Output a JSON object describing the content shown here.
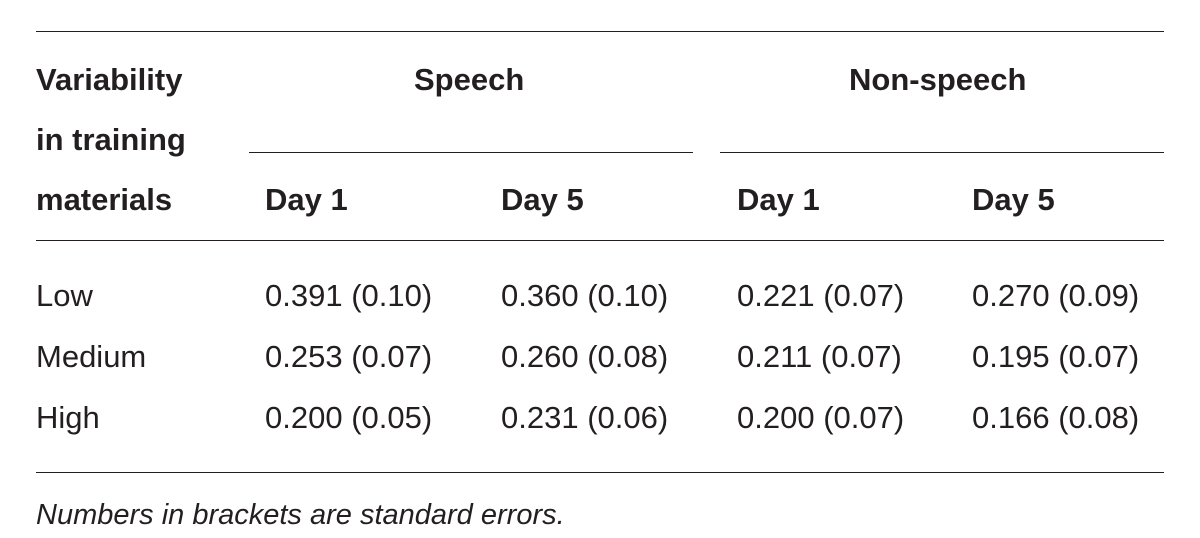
{
  "table": {
    "row_header_lines": [
      "Variability",
      "in training",
      "materials"
    ],
    "groups": [
      "Speech",
      "Non-speech"
    ],
    "subheaders": [
      "Day 1",
      "Day 5",
      "Day 1",
      "Day 5"
    ],
    "rows": [
      {
        "label": "Low",
        "values": [
          "0.391 (0.10)",
          "0.360 (0.10)",
          "0.221 (0.07)",
          "0.270 (0.09)"
        ]
      },
      {
        "label": "Medium",
        "values": [
          "0.253 (0.07)",
          "0.260 (0.08)",
          "0.211 (0.07)",
          "0.195 (0.07)"
        ]
      },
      {
        "label": "High",
        "values": [
          "0.200 (0.05)",
          "0.231 (0.06)",
          "0.200 (0.07)",
          "0.166 (0.08)"
        ]
      }
    ],
    "footnote": "Numbers in brackets are standard errors."
  }
}
